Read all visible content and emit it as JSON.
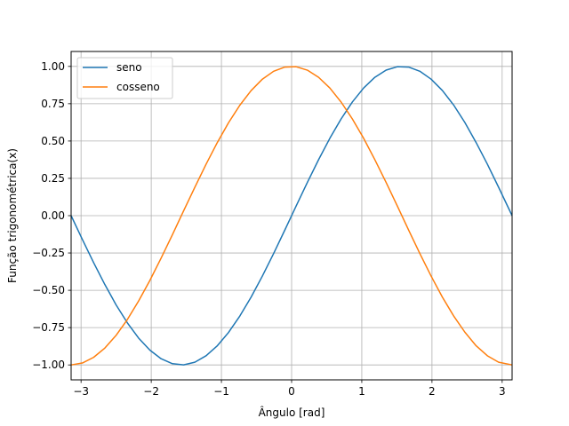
{
  "chart_data": {
    "type": "line",
    "title": "",
    "xlabel": "Ângulo [rad]",
    "ylabel": "Função trigonométrica(x)",
    "xlim": [
      -3.14159,
      3.14159
    ],
    "ylim": [
      -1.1,
      1.1
    ],
    "grid": true,
    "legend_position": "top-left",
    "xticks": [
      -3,
      -2,
      -1,
      0,
      1,
      2,
      3
    ],
    "xtick_labels": [
      "−3",
      "−2",
      "−1",
      "0",
      "1",
      "2",
      "3"
    ],
    "yticks": [
      -1.0,
      -0.75,
      -0.5,
      -0.25,
      0.0,
      0.25,
      0.5,
      0.75,
      1.0
    ],
    "ytick_labels": [
      "−1.00",
      "−0.75",
      "−0.50",
      "−0.25",
      "0.00",
      "0.25",
      "0.50",
      "0.75",
      "1.00"
    ],
    "x": [
      -3.1416,
      -2.9813,
      -2.821,
      -2.6607,
      -2.5004,
      -2.3401,
      -2.1798,
      -2.0195,
      -1.8592,
      -1.6989,
      -1.5387,
      -1.3784,
      -1.2181,
      -1.0578,
      -0.8975,
      -0.7372,
      -0.5769,
      -0.4166,
      -0.2564,
      -0.0961,
      0.0641,
      0.2244,
      0.3847,
      0.545,
      0.7053,
      0.8655,
      1.0258,
      1.1861,
      1.3464,
      1.5067,
      1.667,
      1.8273,
      1.9876,
      2.1479,
      2.3082,
      2.4684,
      2.6287,
      2.789,
      2.9493,
      3.1416
    ],
    "series": [
      {
        "name": "seno",
        "color": "#1f77b4",
        "values": [
          0.0,
          -0.1596,
          -0.3148,
          -0.4618,
          -0.5981,
          -0.7181,
          -0.8205,
          -0.9009,
          -0.9587,
          -0.9917,
          -0.9995,
          -0.9817,
          -0.9384,
          -0.8713,
          -0.7818,
          -0.6722,
          -0.5455,
          -0.4048,
          -0.2536,
          -0.0959,
          0.0641,
          0.2225,
          0.3753,
          0.5184,
          0.6482,
          0.7613,
          0.8552,
          0.927,
          0.975,
          0.9979,
          0.9955,
          0.9675,
          0.9146,
          0.8386,
          0.7416,
          0.6245,
          0.49,
          0.3451,
          0.1902,
          0.0
        ]
      },
      {
        "name": "cosseno",
        "color": "#ff7f0e",
        "values": [
          -1.0,
          -0.9872,
          -0.9492,
          -0.887,
          -0.8016,
          -0.6959,
          -0.5717,
          -0.434,
          -0.2844,
          -0.128,
          0.0321,
          0.1907,
          0.3454,
          0.4908,
          0.6235,
          0.7403,
          0.8381,
          0.9144,
          0.9673,
          0.9954,
          0.9979,
          0.9749,
          0.9269,
          0.8551,
          0.7611,
          0.6482,
          0.5186,
          0.375,
          0.2226,
          0.0641,
          -0.096,
          -0.2537,
          -0.4048,
          -0.5454,
          -0.6713,
          -0.7804,
          -0.8717,
          -0.9385,
          -0.9817,
          -1.0
        ]
      }
    ]
  }
}
